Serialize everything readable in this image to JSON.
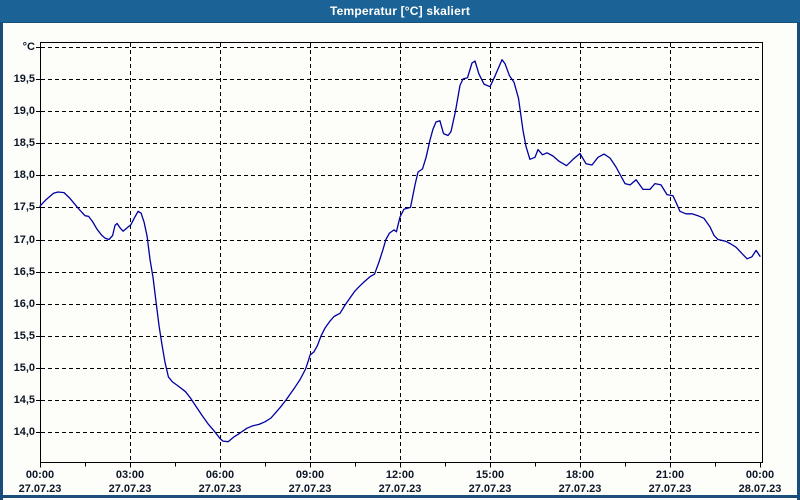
{
  "window": {
    "title": "Temperatur [°C] skaliert"
  },
  "colors": {
    "titlebar": "#1b6396",
    "frame": "#1a4c7c",
    "line": "#0000a2",
    "grid": "#000000",
    "label_text": "#0c1626",
    "plot_background": "#fdfdfa",
    "title_text": "#ffffff"
  },
  "chart_data": {
    "type": "line",
    "title": "Temperatur [°C] skaliert",
    "ylabel": "°C",
    "grid": "dashed",
    "legend": "none",
    "ylim": [
      13.5,
      20.1
    ],
    "xlim_hours": [
      0,
      24
    ],
    "y_tick_step": 0.5,
    "x_major_tick_hours": 3,
    "x_minor_tick_hours": 1.5,
    "y_axis_unit": {
      "label": "°C",
      "value": 20.0
    },
    "y_ticks": [
      {
        "label": "19,5",
        "value": 19.5
      },
      {
        "label": "19,0",
        "value": 19.0
      },
      {
        "label": "18,5",
        "value": 18.5
      },
      {
        "label": "18,0",
        "value": 18.0
      },
      {
        "label": "17,5",
        "value": 17.5
      },
      {
        "label": "17,0",
        "value": 17.0
      },
      {
        "label": "16,5",
        "value": 16.5
      },
      {
        "label": "16,0",
        "value": 16.0
      },
      {
        "label": "15,5",
        "value": 15.5
      },
      {
        "label": "15,0",
        "value": 15.0
      },
      {
        "label": "14,5",
        "value": 14.5
      },
      {
        "label": "14,0",
        "value": 14.0
      }
    ],
    "x_ticks": [
      {
        "hour": 0,
        "time": "00:00",
        "date": "27.07.23"
      },
      {
        "hour": 3,
        "time": "03:00",
        "date": "27.07.23"
      },
      {
        "hour": 6,
        "time": "06:00",
        "date": "27.07.23"
      },
      {
        "hour": 9,
        "time": "09:00",
        "date": "27.07.23"
      },
      {
        "hour": 12,
        "time": "12:00",
        "date": "27.07.23"
      },
      {
        "hour": 15,
        "time": "15:00",
        "date": "27.07.23"
      },
      {
        "hour": 18,
        "time": "18:00",
        "date": "27.07.23"
      },
      {
        "hour": 21,
        "time": "21:00",
        "date": "27.07.23"
      },
      {
        "hour": 24,
        "time": "00:00",
        "date": "28.07.23"
      }
    ],
    "series": [
      {
        "name": "Temperatur",
        "color": "#0000a2",
        "points": [
          [
            0.0,
            17.52
          ],
          [
            0.2,
            17.62
          ],
          [
            0.45,
            17.72
          ],
          [
            0.6,
            17.74
          ],
          [
            0.8,
            17.73
          ],
          [
            1.0,
            17.64
          ],
          [
            1.25,
            17.5
          ],
          [
            1.4,
            17.42
          ],
          [
            1.5,
            17.37
          ],
          [
            1.62,
            17.36
          ],
          [
            1.75,
            17.28
          ],
          [
            1.9,
            17.16
          ],
          [
            2.05,
            17.07
          ],
          [
            2.17,
            17.02
          ],
          [
            2.3,
            17.0
          ],
          [
            2.42,
            17.06
          ],
          [
            2.5,
            17.22
          ],
          [
            2.57,
            17.25
          ],
          [
            2.67,
            17.18
          ],
          [
            2.77,
            17.13
          ],
          [
            2.9,
            17.18
          ],
          [
            3.03,
            17.23
          ],
          [
            3.15,
            17.34
          ],
          [
            3.27,
            17.44
          ],
          [
            3.37,
            17.41
          ],
          [
            3.47,
            17.27
          ],
          [
            3.57,
            17.05
          ],
          [
            3.67,
            16.68
          ],
          [
            3.77,
            16.4
          ],
          [
            3.87,
            16.02
          ],
          [
            3.97,
            15.65
          ],
          [
            4.07,
            15.35
          ],
          [
            4.17,
            15.08
          ],
          [
            4.28,
            14.86
          ],
          [
            4.42,
            14.78
          ],
          [
            4.6,
            14.72
          ],
          [
            4.85,
            14.63
          ],
          [
            5.0,
            14.54
          ],
          [
            5.2,
            14.4
          ],
          [
            5.4,
            14.26
          ],
          [
            5.6,
            14.13
          ],
          [
            5.8,
            14.02
          ],
          [
            6.0,
            13.9
          ],
          [
            6.1,
            13.86
          ],
          [
            6.27,
            13.85
          ],
          [
            6.45,
            13.92
          ],
          [
            6.65,
            13.98
          ],
          [
            6.9,
            14.06
          ],
          [
            7.1,
            14.1
          ],
          [
            7.3,
            14.12
          ],
          [
            7.5,
            14.16
          ],
          [
            7.7,
            14.22
          ],
          [
            7.85,
            14.3
          ],
          [
            8.0,
            14.38
          ],
          [
            8.2,
            14.5
          ],
          [
            8.35,
            14.6
          ],
          [
            8.5,
            14.7
          ],
          [
            8.67,
            14.82
          ],
          [
            8.85,
            14.98
          ],
          [
            8.95,
            15.12
          ],
          [
            9.0,
            15.2
          ],
          [
            9.13,
            15.25
          ],
          [
            9.25,
            15.35
          ],
          [
            9.37,
            15.5
          ],
          [
            9.5,
            15.62
          ],
          [
            9.65,
            15.72
          ],
          [
            9.8,
            15.8
          ],
          [
            10.0,
            15.85
          ],
          [
            10.17,
            15.98
          ],
          [
            10.35,
            16.1
          ],
          [
            10.5,
            16.2
          ],
          [
            10.67,
            16.28
          ],
          [
            10.85,
            16.36
          ],
          [
            11.0,
            16.42
          ],
          [
            11.15,
            16.46
          ],
          [
            11.3,
            16.65
          ],
          [
            11.43,
            16.84
          ],
          [
            11.53,
            17.0
          ],
          [
            11.65,
            17.1
          ],
          [
            11.8,
            17.15
          ],
          [
            11.88,
            17.12
          ],
          [
            12.0,
            17.35
          ],
          [
            12.13,
            17.47
          ],
          [
            12.35,
            17.5
          ],
          [
            12.5,
            17.85
          ],
          [
            12.6,
            18.05
          ],
          [
            12.75,
            18.1
          ],
          [
            12.87,
            18.28
          ],
          [
            13.0,
            18.55
          ],
          [
            13.1,
            18.72
          ],
          [
            13.2,
            18.83
          ],
          [
            13.33,
            18.85
          ],
          [
            13.45,
            18.65
          ],
          [
            13.6,
            18.62
          ],
          [
            13.7,
            18.68
          ],
          [
            13.85,
            19.0
          ],
          [
            14.0,
            19.4
          ],
          [
            14.1,
            19.5
          ],
          [
            14.25,
            19.52
          ],
          [
            14.4,
            19.75
          ],
          [
            14.5,
            19.78
          ],
          [
            14.63,
            19.58
          ],
          [
            14.8,
            19.42
          ],
          [
            15.0,
            19.38
          ],
          [
            15.17,
            19.55
          ],
          [
            15.4,
            19.8
          ],
          [
            15.5,
            19.74
          ],
          [
            15.65,
            19.55
          ],
          [
            15.8,
            19.45
          ],
          [
            15.95,
            19.2
          ],
          [
            16.1,
            18.7
          ],
          [
            16.2,
            18.45
          ],
          [
            16.33,
            18.25
          ],
          [
            16.5,
            18.28
          ],
          [
            16.6,
            18.4
          ],
          [
            16.75,
            18.32
          ],
          [
            16.9,
            18.35
          ],
          [
            17.1,
            18.3
          ],
          [
            17.3,
            18.22
          ],
          [
            17.55,
            18.15
          ],
          [
            17.77,
            18.25
          ],
          [
            18.0,
            18.34
          ],
          [
            18.2,
            18.18
          ],
          [
            18.4,
            18.16
          ],
          [
            18.6,
            18.28
          ],
          [
            18.8,
            18.33
          ],
          [
            19.0,
            18.27
          ],
          [
            19.2,
            18.13
          ],
          [
            19.35,
            18.0
          ],
          [
            19.5,
            17.87
          ],
          [
            19.67,
            17.85
          ],
          [
            19.87,
            17.93
          ],
          [
            20.1,
            17.78
          ],
          [
            20.33,
            17.78
          ],
          [
            20.5,
            17.87
          ],
          [
            20.7,
            17.85
          ],
          [
            20.9,
            17.7
          ],
          [
            21.1,
            17.68
          ],
          [
            21.2,
            17.58
          ],
          [
            21.33,
            17.44
          ],
          [
            21.53,
            17.4
          ],
          [
            21.73,
            17.4
          ],
          [
            21.93,
            17.37
          ],
          [
            22.13,
            17.33
          ],
          [
            22.33,
            17.2
          ],
          [
            22.47,
            17.06
          ],
          [
            22.6,
            17.0
          ],
          [
            22.87,
            16.97
          ],
          [
            23.03,
            16.93
          ],
          [
            23.2,
            16.88
          ],
          [
            23.4,
            16.78
          ],
          [
            23.57,
            16.7
          ],
          [
            23.73,
            16.73
          ],
          [
            23.87,
            16.83
          ],
          [
            24.0,
            16.74
          ]
        ]
      }
    ]
  }
}
